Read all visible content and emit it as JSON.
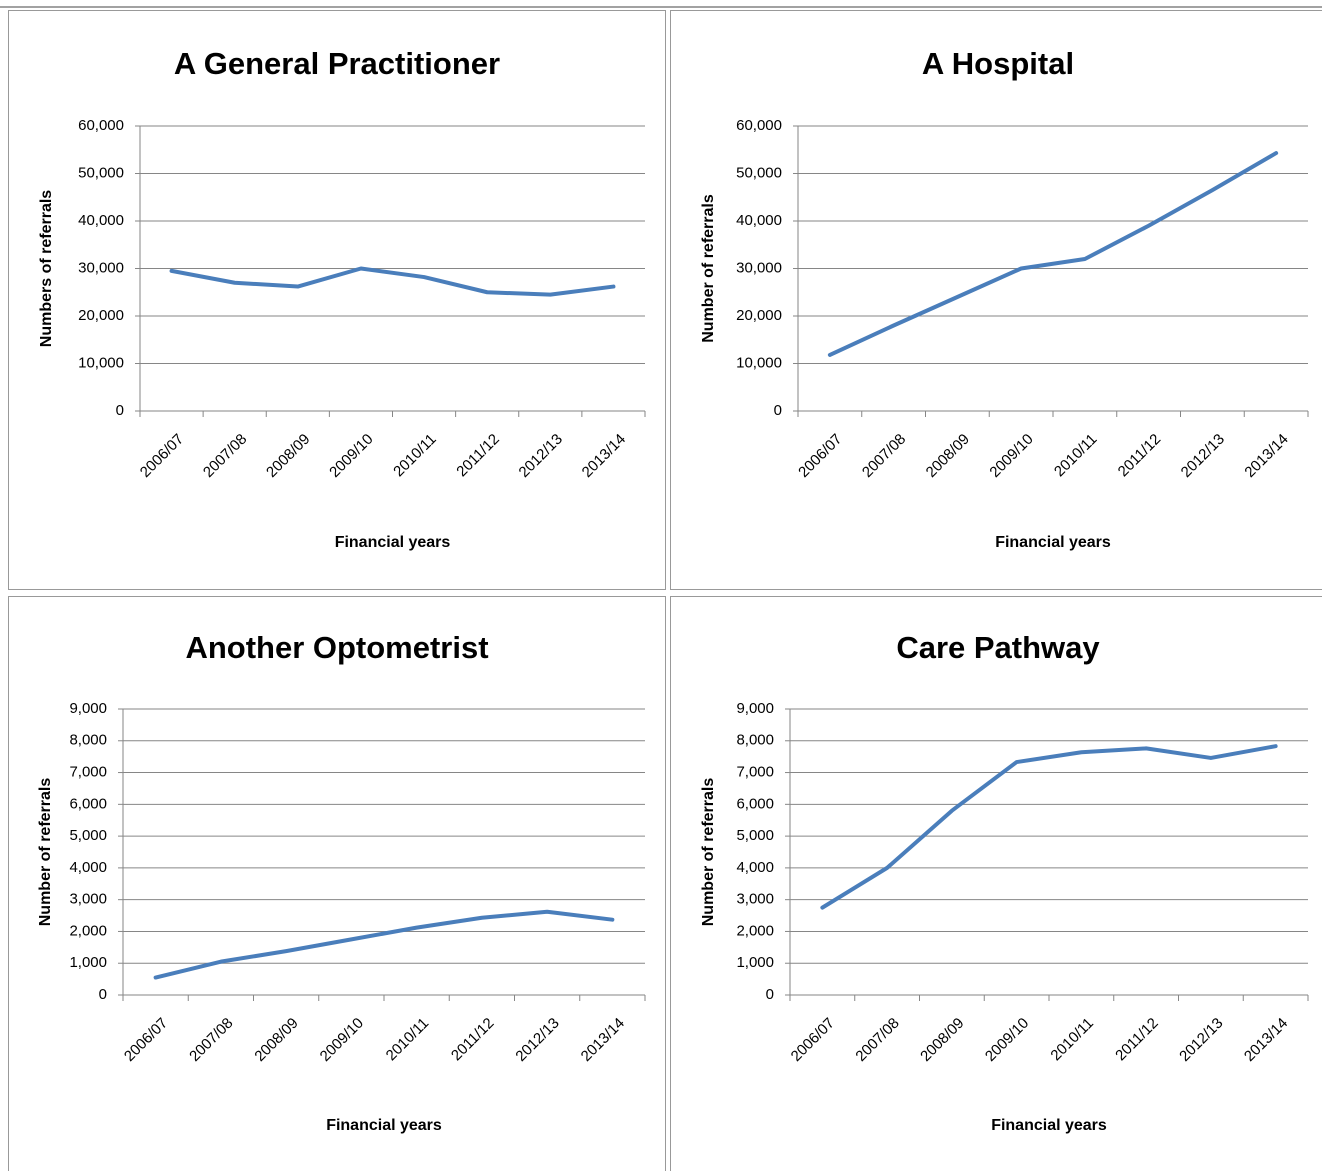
{
  "chart_data": [
    {
      "type": "line",
      "title": "A General Practitioner",
      "x_label": "Financial years",
      "y_label": "Numbers of referrals",
      "categories": [
        "2006/07",
        "2007/08",
        "2008/09",
        "2009/10",
        "2010/11",
        "2011/12",
        "2012/13",
        "2013/14"
      ],
      "values": [
        29500,
        27000,
        26200,
        30000,
        28200,
        25000,
        24500,
        26200
      ],
      "color": "#4a7ebb",
      "ylim": [
        0,
        60000
      ],
      "yticks": [
        0,
        {
          "value": 10000,
          "label": "10,000"
        },
        {
          "value": 20000,
          "label": "20,000"
        },
        {
          "value": 30000,
          "label": "30,000"
        },
        {
          "value": 40000,
          "label": "40,000"
        },
        {
          "value": 50000,
          "label": "50,000"
        },
        {
          "value": 60000,
          "label": "60,000"
        }
      ],
      "grid": true
    },
    {
      "type": "line",
      "title": "A Hospital",
      "x_label": "Financial years",
      "y_label": "Number of referrals",
      "categories": [
        "2006/07",
        "2007/08",
        "2008/09",
        "2009/10",
        "2010/11",
        "2011/12",
        "2012/13",
        "2013/14"
      ],
      "values": [
        11800,
        18000,
        24000,
        30000,
        32000,
        39000,
        46500,
        54300
      ],
      "color": "#4a7ebb",
      "ylim": [
        0,
        60000
      ],
      "yticks": [
        0,
        {
          "value": 10000,
          "label": "10,000"
        },
        {
          "value": 20000,
          "label": "20,000"
        },
        {
          "value": 30000,
          "label": "30,000"
        },
        {
          "value": 40000,
          "label": "40,000"
        },
        {
          "value": 50000,
          "label": "50,000"
        },
        {
          "value": 60000,
          "label": "60,000"
        }
      ],
      "grid": true
    },
    {
      "type": "line",
      "title": "Another Optometrist",
      "x_label": "Financial years",
      "y_label": "Number of referrals",
      "categories": [
        "2006/07",
        "2007/08",
        "2008/09",
        "2009/10",
        "2010/11",
        "2011/12",
        "2012/13",
        "2013/14"
      ],
      "values": [
        550,
        1050,
        1380,
        1750,
        2120,
        2430,
        2620,
        2370
      ],
      "color": "#4a7ebb",
      "ylim": [
        0,
        9000
      ],
      "yticks": [
        0,
        {
          "value": 1000,
          "label": "1,000"
        },
        {
          "value": 2000,
          "label": "2,000"
        },
        {
          "value": 3000,
          "label": "3,000"
        },
        {
          "value": 4000,
          "label": "4,000"
        },
        {
          "value": 5000,
          "label": "5,000"
        },
        {
          "value": 6000,
          "label": "6,000"
        },
        {
          "value": 7000,
          "label": "7,000"
        },
        {
          "value": 8000,
          "label": "8,000"
        },
        {
          "value": 9000,
          "label": "9,000"
        }
      ],
      "grid": true
    },
    {
      "type": "line",
      "title": "Care Pathway",
      "x_label": "Financial years",
      "y_label": "Number of referrals",
      "categories": [
        "2006/07",
        "2007/08",
        "2008/09",
        "2009/10",
        "2010/11",
        "2011/12",
        "2012/13",
        "2013/14"
      ],
      "values": [
        2750,
        4000,
        5800,
        7330,
        7640,
        7760,
        7460,
        7830
      ],
      "color": "#4a7ebb",
      "ylim": [
        0,
        9000
      ],
      "yticks": [
        0,
        {
          "value": 1000,
          "label": "1,000"
        },
        {
          "value": 2000,
          "label": "2,000"
        },
        {
          "value": 3000,
          "label": "3,000"
        },
        {
          "value": 4000,
          "label": "4,000"
        },
        {
          "value": 5000,
          "label": "5,000"
        },
        {
          "value": 6000,
          "label": "6,000"
        },
        {
          "value": 7000,
          "label": "7,000"
        },
        {
          "value": 8000,
          "label": "8,000"
        },
        {
          "value": 9000,
          "label": "9,000"
        }
      ],
      "grid": true
    }
  ]
}
